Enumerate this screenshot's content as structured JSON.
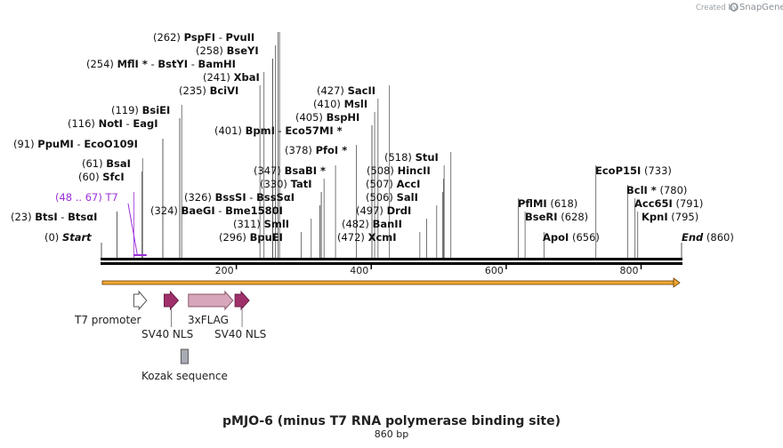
{
  "branding": {
    "created_by": "Created by",
    "brand": "SnapGene"
  },
  "title": "pMJO-6 (minus T7 RNA polymerase binding site)",
  "subtitle": "860 bp",
  "sequence_length": 860,
  "scale_ticks": [
    "200",
    "400",
    "600",
    "800"
  ],
  "labels": [
    {
      "id": "pspfi",
      "parts": [
        [
          "n",
          "(262)  "
        ],
        [
          "b",
          "PspFI"
        ],
        [
          "n",
          "  - "
        ],
        [
          "b",
          "PvuII"
        ]
      ],
      "positions": [
        262,
        264
      ]
    },
    {
      "id": "bseyi",
      "parts": [
        [
          "n",
          "(258)  "
        ],
        [
          "b",
          "BseYI"
        ]
      ],
      "positions": [
        258
      ]
    },
    {
      "id": "mfli",
      "parts": [
        [
          "n",
          "(254)  "
        ],
        [
          "b",
          "MflI *"
        ],
        [
          "n",
          " - "
        ],
        [
          "b",
          "BstYI"
        ],
        [
          "n",
          "  - "
        ],
        [
          "b",
          "BamHI"
        ]
      ],
      "positions": [
        254,
        254,
        254
      ]
    },
    {
      "id": "xbai",
      "parts": [
        [
          "n",
          "(241)  "
        ],
        [
          "b",
          "XbaI"
        ]
      ],
      "positions": [
        241
      ]
    },
    {
      "id": "bcivi",
      "parts": [
        [
          "n",
          "(235)  "
        ],
        [
          "b",
          "BciVI"
        ]
      ],
      "positions": [
        235
      ]
    },
    {
      "id": "sacii",
      "parts": [
        [
          "n",
          "(427)  "
        ],
        [
          "b",
          "SacII"
        ]
      ],
      "positions": [
        427
      ]
    },
    {
      "id": "msli",
      "parts": [
        [
          "n",
          "(410)  "
        ],
        [
          "b",
          "MslI"
        ]
      ],
      "positions": [
        410
      ]
    },
    {
      "id": "bsiei",
      "parts": [
        [
          "n",
          "(119)  "
        ],
        [
          "b",
          "BsiEI"
        ]
      ],
      "positions": [
        119
      ]
    },
    {
      "id": "bsphi",
      "parts": [
        [
          "n",
          "(405)  "
        ],
        [
          "b",
          "BspHI"
        ]
      ],
      "positions": [
        405
      ]
    },
    {
      "id": "noti",
      "parts": [
        [
          "n",
          "(116)  "
        ],
        [
          "b",
          "NotI"
        ],
        [
          "n",
          "  - "
        ],
        [
          "b",
          "EagI"
        ]
      ],
      "positions": [
        116,
        116
      ]
    },
    {
      "id": "bpmi",
      "parts": [
        [
          "n",
          "(401)  "
        ],
        [
          "b",
          "BpmI"
        ],
        [
          "n",
          "  - "
        ],
        [
          "b",
          "Eco57MI *"
        ]
      ],
      "positions": [
        401,
        401
      ]
    },
    {
      "id": "ppumi",
      "parts": [
        [
          "n",
          "(91)  "
        ],
        [
          "b",
          "PpuMI"
        ],
        [
          "n",
          "  - "
        ],
        [
          "b",
          "EcoO109I"
        ]
      ],
      "positions": [
        91,
        91
      ]
    },
    {
      "id": "pfoi",
      "parts": [
        [
          "n",
          "(378)  "
        ],
        [
          "b",
          "PfoI *"
        ]
      ],
      "positions": [
        378
      ]
    },
    {
      "id": "stui",
      "parts": [
        [
          "n",
          "(518)  "
        ],
        [
          "b",
          "StuI"
        ]
      ],
      "positions": [
        518
      ]
    },
    {
      "id": "bsai",
      "parts": [
        [
          "n",
          "(61)  "
        ],
        [
          "b",
          "BsaI"
        ]
      ],
      "positions": [
        61
      ]
    },
    {
      "id": "bsabi",
      "parts": [
        [
          "n",
          "(347)  "
        ],
        [
          "b",
          "BsaBI *"
        ]
      ],
      "positions": [
        347
      ]
    },
    {
      "id": "hincii",
      "parts": [
        [
          "n",
          "(508)  "
        ],
        [
          "b",
          "HincII"
        ]
      ],
      "positions": [
        508
      ]
    },
    {
      "id": "ecop15i",
      "parts": [
        [
          "b",
          "EcoP15I"
        ],
        [
          "n",
          "   (733)"
        ]
      ],
      "positions": [
        733
      ]
    },
    {
      "id": "sfci",
      "parts": [
        [
          "n",
          "(60)  "
        ],
        [
          "b",
          "SfcI"
        ]
      ],
      "positions": [
        60
      ]
    },
    {
      "id": "tati",
      "parts": [
        [
          "n",
          "(330)  "
        ],
        [
          "b",
          "TatI"
        ]
      ],
      "positions": [
        330
      ]
    },
    {
      "id": "acci",
      "parts": [
        [
          "n",
          "(507)  "
        ],
        [
          "b",
          "AccI"
        ]
      ],
      "positions": [
        507
      ]
    },
    {
      "id": "bcli",
      "parts": [
        [
          "b",
          "BclI *"
        ],
        [
          "n",
          "  (780)"
        ]
      ],
      "positions": [
        780
      ]
    },
    {
      "id": "t7primer",
      "parts": [
        [
          "n",
          "(48 .. 67)  T7"
        ]
      ],
      "positions": [
        48
      ],
      "primer": true
    },
    {
      "id": "bsssi",
      "parts": [
        [
          "n",
          "(326)  "
        ],
        [
          "b",
          "BssSI"
        ],
        [
          "n",
          "  - "
        ],
        [
          "b",
          "BssSαI"
        ]
      ],
      "positions": [
        326,
        326
      ]
    },
    {
      "id": "sali",
      "parts": [
        [
          "n",
          "(506)  "
        ],
        [
          "b",
          "SalI"
        ]
      ],
      "positions": [
        506
      ]
    },
    {
      "id": "pflmi",
      "parts": [
        [
          "b",
          "PflMI"
        ],
        [
          "n",
          "   (618)"
        ]
      ],
      "positions": [
        618
      ]
    },
    {
      "id": "acc65i",
      "parts": [
        [
          "b",
          "Acc65I"
        ],
        [
          "n",
          "   (791)"
        ]
      ],
      "positions": [
        791
      ]
    },
    {
      "id": "baegi",
      "parts": [
        [
          "n",
          "(324)  "
        ],
        [
          "b",
          "BaeGI"
        ],
        [
          "n",
          "  - "
        ],
        [
          "b",
          "Bme1580I"
        ]
      ],
      "positions": [
        324,
        324
      ]
    },
    {
      "id": "drdi",
      "parts": [
        [
          "n",
          "(497)  "
        ],
        [
          "b",
          "DrdI"
        ]
      ],
      "positions": [
        497
      ]
    },
    {
      "id": "btsi",
      "parts": [
        [
          "n",
          "(23)  "
        ],
        [
          "b",
          "BtsI"
        ],
        [
          "n",
          "  - "
        ],
        [
          "b",
          "BtsαI"
        ]
      ],
      "positions": [
        23,
        23
      ]
    },
    {
      "id": "bseri",
      "parts": [
        [
          "b",
          "BseRI"
        ],
        [
          "n",
          "   (628)"
        ]
      ],
      "positions": [
        628
      ]
    },
    {
      "id": "kpni",
      "parts": [
        [
          "b",
          "KpnI"
        ],
        [
          "n",
          "   (795)"
        ]
      ],
      "positions": [
        795
      ]
    },
    {
      "id": "smli",
      "parts": [
        [
          "n",
          "(311)  "
        ],
        [
          "b",
          "SmlI"
        ]
      ],
      "positions": [
        311
      ]
    },
    {
      "id": "banii",
      "parts": [
        [
          "n",
          "(482)  "
        ],
        [
          "b",
          "BanII"
        ]
      ],
      "positions": [
        482
      ]
    },
    {
      "id": "start",
      "parts": [
        [
          "n",
          "(0)  "
        ],
        [
          "i",
          "Start"
        ]
      ],
      "positions": [
        0
      ]
    },
    {
      "id": "bpuei",
      "parts": [
        [
          "n",
          "(296)  "
        ],
        [
          "b",
          "BpuEI"
        ]
      ],
      "positions": [
        296
      ]
    },
    {
      "id": "xcmi",
      "parts": [
        [
          "n",
          "(472)  "
        ],
        [
          "b",
          "XcmI"
        ]
      ],
      "positions": [
        472
      ]
    },
    {
      "id": "apoi",
      "parts": [
        [
          "b",
          "ApoI"
        ],
        [
          "n",
          "   (656)"
        ]
      ],
      "positions": [
        656
      ]
    },
    {
      "id": "end",
      "parts": [
        [
          "i",
          "End"
        ],
        [
          "n",
          "   (860)"
        ]
      ],
      "positions": [
        860
      ]
    }
  ],
  "features": [
    {
      "id": "t7-promoter",
      "label": "T7 promoter",
      "start": 48,
      "end": 67,
      "color": "#ffffff",
      "stroke": "#555555",
      "kind": "arrow"
    },
    {
      "id": "sv40-nls-1",
      "label": "SV40 NLS",
      "start": 93,
      "end": 114,
      "color": "#a0306a",
      "stroke": "#6b1f47",
      "kind": "arrow"
    },
    {
      "id": "3xflag",
      "label": "3xFLAG",
      "start": 129,
      "end": 195,
      "color": "#d7a6ba",
      "stroke": "#8a5a6e",
      "kind": "arrow"
    },
    {
      "id": "sv40-nls-2",
      "label": "SV40 NLS",
      "start": 198,
      "end": 219,
      "color": "#a0306a",
      "stroke": "#6b1f47",
      "kind": "arrow"
    },
    {
      "id": "kozak",
      "label": "Kozak sequence",
      "start": 114,
      "end": 125,
      "color": "#a9abb4",
      "stroke": "#555555",
      "kind": "box"
    }
  ]
}
